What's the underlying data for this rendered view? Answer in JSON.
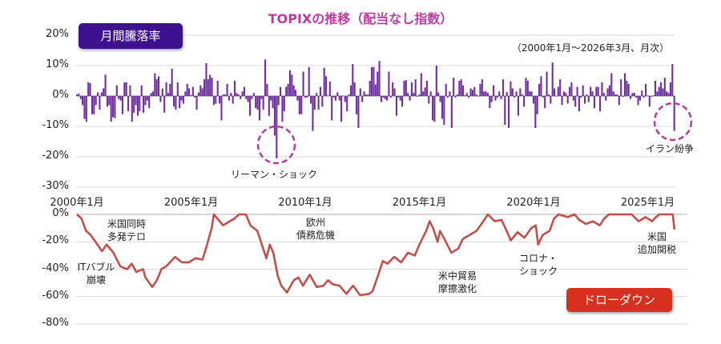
{
  "chart_data": [
    {
      "type": "bar",
      "title": "TOPIXの推移（配当なし指数）",
      "subtitle": "（2000年1月～2026年3月、月次）",
      "legend_label": "月間騰落率",
      "start": "2000-01",
      "end": "2026-03",
      "frequency": "monthly",
      "ylim": [
        -30,
        20
      ],
      "yticks": [
        "20%",
        "10%",
        "0%",
        "-10%",
        "-20%",
        "-30%"
      ],
      "ytick_values": [
        20,
        10,
        0,
        -10,
        -20,
        -30
      ],
      "xticks": [
        "2000年1月",
        "2005年1月",
        "2010年1月",
        "2015年1月",
        "2020年1月",
        "2025年1月"
      ],
      "grid": true,
      "color": "#7030a0",
      "values": [
        0.5,
        0.8,
        -1,
        -3,
        -7.5,
        -8.5,
        4.5,
        4.2,
        -6,
        -6,
        -3,
        1.2,
        -4.5,
        1.2,
        2.5,
        7,
        -3.5,
        -3,
        -8.5,
        -7,
        -7.3,
        3.5,
        -1,
        -1.5,
        -6,
        4.5,
        4.5,
        -5,
        3.5,
        -8.5,
        -5.5,
        -3,
        -6.5,
        -5,
        3.5,
        -5.5,
        -3,
        -1.5,
        -4,
        1,
        1.5,
        7.5,
        5.5,
        6.5,
        -2,
        2.5,
        -5.5,
        4.5,
        1,
        4,
        9,
        -3.5,
        -4.5,
        4.5,
        -4,
        -1.5,
        -2.5,
        1.5,
        4,
        2.5,
        0.3,
        3,
        -0.5,
        -4.5,
        1.2,
        3.5,
        2.5,
        5.5,
        10.8,
        5.5,
        7,
        6,
        -3,
        -2.5,
        5,
        -2.5,
        -8,
        0.5,
        0.5,
        4,
        -1.5,
        1,
        -2.5,
        5,
        1,
        0.5,
        -1,
        1.5,
        3,
        -1,
        -2,
        -6.5,
        -1,
        1,
        -4,
        -4.5,
        -8,
        -1,
        -4.5,
        12,
        4,
        -6.5,
        -1.5,
        -4,
        -13,
        -20.5,
        -3,
        3,
        -8.5,
        -5,
        3,
        4,
        8.5,
        7,
        3.5,
        2,
        -1.5,
        -6,
        -6,
        8,
        -0.5,
        -0.5,
        9.5,
        -2.5,
        -11.5,
        -4.5,
        1,
        -4.5,
        3,
        -3.5,
        9.3,
        6.5,
        0.1,
        4.8,
        -8,
        -0.5,
        -1.5,
        1.2,
        -1.5,
        -8.5,
        0.1,
        -2,
        -5,
        0.5,
        3.5,
        10.5,
        4.5,
        -6,
        -10.5,
        2.5,
        -2,
        1.5,
        0.5,
        0.5,
        5,
        9.5,
        9.5,
        3.8,
        8,
        11.5,
        -2,
        -0.5,
        -1,
        -1.5,
        8,
        -0.5,
        4.5,
        2.5,
        -6.5,
        -0.5,
        -1.5,
        -3.5,
        5,
        5.2,
        1,
        -1.5,
        4.5,
        1,
        5.5,
        -0.2,
        0.5,
        7.5,
        1.5,
        2.8,
        5,
        -2.5,
        1.5,
        -8,
        -8.5,
        10,
        1.2,
        -2,
        -7.5,
        -9.5,
        4,
        -0.5,
        1.5,
        -10.5,
        6,
        -0.5,
        0.5,
        5,
        5.5,
        3.5,
        0.2,
        1,
        -0.5,
        2.5,
        2,
        3,
        0.5,
        0,
        4,
        5.5,
        1.5,
        1.5,
        1,
        -4,
        -2,
        3.5,
        -1.5,
        -0.5,
        1.5,
        -1,
        5.5,
        -9.5,
        1.3,
        -10.5,
        4.8,
        2.5,
        -0.5,
        1.5,
        -6.5,
        2.5,
        0.5,
        -3.5,
        6,
        5,
        1.5,
        1.5,
        -2.5,
        -10.5,
        -6,
        4,
        6.5,
        -0.5,
        -4,
        8,
        0.5,
        -2.5,
        11,
        2.5,
        0,
        3,
        5.5,
        -3,
        1.5,
        1,
        -2.5,
        3,
        4.5,
        -1.5,
        -3.5,
        3,
        -5,
        -0.5,
        3.5,
        -2.5,
        0.5,
        -2,
        3,
        1.5,
        -4,
        3,
        3,
        -5,
        4.5,
        1,
        -1.5,
        2.5,
        3.5,
        7.5,
        1.5,
        0.5,
        0.5,
        -3,
        5.5,
        -0.3,
        7.5,
        5,
        4,
        -1,
        1,
        1,
        -0.5,
        -3,
        -1.5,
        1.8,
        -0.5,
        4,
        0.1,
        -3.5,
        -0.2,
        0.2,
        5,
        1.5,
        3,
        4.5,
        2.5,
        6,
        1.5,
        1,
        4.5,
        10.5,
        -11.5
      ],
      "annotations": [
        {
          "text": "リーマン・ショック",
          "date": "2008-10"
        },
        {
          "text": "イラン紛争",
          "date": "2026-03"
        }
      ]
    },
    {
      "type": "line",
      "legend_label": "ドローダウン",
      "ylim": [
        -80,
        0
      ],
      "yticks": [
        "0%",
        "-20%",
        "-40%",
        "-60%",
        "-80%"
      ],
      "ytick_values": [
        0,
        -20,
        -40,
        -60,
        -80
      ],
      "grid": true,
      "color": "#c0504d",
      "points": [
        [
          "2000.0",
          0
        ],
        [
          "2000.2",
          -3
        ],
        [
          "2000.4",
          -12
        ],
        [
          "2000.6",
          -15
        ],
        [
          "2000.9",
          -22
        ],
        [
          "2001.1",
          -27
        ],
        [
          "2001.3",
          -22
        ],
        [
          "2001.6",
          -28
        ],
        [
          "2001.9",
          -38
        ],
        [
          "2002.2",
          -40
        ],
        [
          "2002.4",
          -36
        ],
        [
          "2002.6",
          -42
        ],
        [
          "2002.9",
          -40
        ],
        [
          "2003.0",
          -46
        ],
        [
          "2003.3",
          -53
        ],
        [
          "2003.5",
          -48
        ],
        [
          "2003.7",
          -40
        ],
        [
          "2003.9",
          -38
        ],
        [
          "2004.3",
          -31
        ],
        [
          "2004.6",
          -35
        ],
        [
          "2004.9",
          -35
        ],
        [
          "2005.2",
          -32
        ],
        [
          "2005.5",
          -33
        ],
        [
          "2005.7",
          -22
        ],
        [
          "2005.9",
          -10
        ],
        [
          "2006.0",
          0
        ],
        [
          "2006.4",
          -8
        ],
        [
          "2006.6",
          -6
        ],
        [
          "2006.9",
          -3
        ],
        [
          "2007.1",
          0
        ],
        [
          "2007.4",
          0
        ],
        [
          "2007.6",
          -8
        ],
        [
          "2007.9",
          -12
        ],
        [
          "2008.1",
          -22
        ],
        [
          "2008.3",
          -32
        ],
        [
          "2008.45",
          -22
        ],
        [
          "2008.6",
          -28
        ],
        [
          "2008.8",
          -45
        ],
        [
          "2008.95",
          -52
        ],
        [
          "2009.2",
          -57
        ],
        [
          "2009.5",
          -48
        ],
        [
          "2009.7",
          -46
        ],
        [
          "2009.9",
          -52
        ],
        [
          "2010.2",
          -44
        ],
        [
          "2010.5",
          -53
        ],
        [
          "2010.8",
          -52
        ],
        [
          "2011.0",
          -48
        ],
        [
          "2011.2",
          -51
        ],
        [
          "2011.5",
          -52
        ],
        [
          "2011.8",
          -58
        ],
        [
          "2012.1",
          -52
        ],
        [
          "2012.4",
          -59
        ],
        [
          "2012.8",
          -58
        ],
        [
          "2012.95",
          -56
        ],
        [
          "2013.2",
          -44
        ],
        [
          "2013.4",
          -34
        ],
        [
          "2013.6",
          -36
        ],
        [
          "2013.9",
          -31
        ],
        [
          "2014.2",
          -35
        ],
        [
          "2014.5",
          -28
        ],
        [
          "2014.8",
          -30
        ],
        [
          "2015.0",
          -22
        ],
        [
          "2015.3",
          -12
        ],
        [
          "2015.45",
          -5
        ],
        [
          "2015.6",
          -10
        ],
        [
          "2015.8",
          -20
        ],
        [
          "2015.9",
          -12
        ],
        [
          "2016.1",
          -18
        ],
        [
          "2016.4",
          -28
        ],
        [
          "2016.7",
          -25
        ],
        [
          "2016.9",
          -18
        ],
        [
          "2017.2",
          -15
        ],
        [
          "2017.5",
          -12
        ],
        [
          "2017.8",
          -5
        ],
        [
          "2018.0",
          0
        ],
        [
          "2018.3",
          -5
        ],
        [
          "2018.6",
          -4
        ],
        [
          "2018.9",
          -15
        ],
        [
          "2019.0",
          -19
        ],
        [
          "2019.3",
          -13
        ],
        [
          "2019.6",
          -17
        ],
        [
          "2019.9",
          -10
        ],
        [
          "2020.1",
          -8
        ],
        [
          "2020.2",
          -22
        ],
        [
          "2020.4",
          -15
        ],
        [
          "2020.7",
          -12
        ],
        [
          "2020.9",
          -3
        ],
        [
          "2021.1",
          0
        ],
        [
          "2021.5",
          -2
        ],
        [
          "2021.8",
          0
        ],
        [
          "2022.0",
          -4
        ],
        [
          "2022.3",
          -7
        ],
        [
          "2022.6",
          -5
        ],
        [
          "2022.9",
          -8
        ],
        [
          "2023.1",
          -3
        ],
        [
          "2023.3",
          0
        ],
        [
          "2023.8",
          0
        ],
        [
          "2024.3",
          0
        ],
        [
          "2024.6",
          -5
        ],
        [
          "2024.9",
          -2
        ],
        [
          "2025.2",
          -5
        ],
        [
          "2025.3",
          -3
        ],
        [
          "2025.5",
          0
        ],
        [
          "2026.0",
          0
        ],
        [
          "2026.1",
          0
        ],
        [
          "2026.17",
          -11
        ]
      ],
      "annotations": [
        {
          "lines": [
            "米国同時",
            "多発テロ"
          ]
        },
        {
          "lines": [
            "ITバブル",
            "崩壊"
          ]
        },
        {
          "lines": [
            "欧州",
            "債務危機"
          ]
        },
        {
          "lines": [
            "米中貿易",
            "摩擦激化"
          ]
        },
        {
          "lines": [
            "コロナ・",
            "ショック"
          ]
        },
        {
          "lines": [
            "米国",
            "追加関税"
          ]
        }
      ]
    }
  ],
  "colors": {
    "title": "#c0399f",
    "bar": "#7030a0",
    "line": "#c0504d",
    "bar_badge": "#3d1090",
    "line_badge": "#d8301e",
    "circle": "#b13d9e",
    "grid": "#d9d9d9"
  }
}
